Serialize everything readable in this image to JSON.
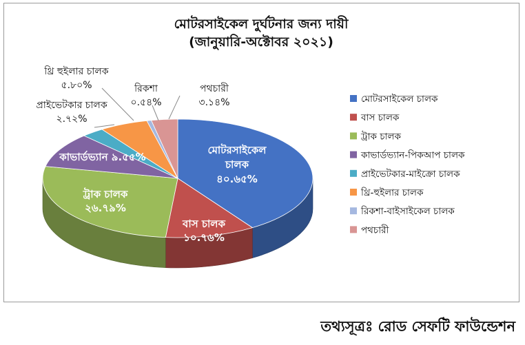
{
  "chart_data": {
    "type": "pie",
    "title": "মোটরসাইকেল দুর্ঘটনার জন্য দায়ী",
    "subtitle": "(জানুয়ারি-অক্টোবর ২০২১)",
    "legend_position": "right",
    "slices": [
      {
        "name": "মোটরসাইকেল চালক",
        "value": 40.65,
        "label": "মোটরসাইকেল চালক",
        "pct": "৪০.৬৫%",
        "color": "#4472C4"
      },
      {
        "name": "বাস চালক",
        "value": 10.76,
        "label": "বাস চালক",
        "pct": "১০.৭৬%",
        "color": "#C0504D"
      },
      {
        "name": "ট্রাক চালক",
        "value": 26.79,
        "label": "ট্রাক চালক",
        "pct": "২৬.৭৯%",
        "color": "#9BBB59"
      },
      {
        "name": "কাভার্ডভ্যান-পিকআপ চালক",
        "value": 9.55,
        "label": "কাভার্ডভ্যান",
        "pct": "৯.৫৫%",
        "color": "#8064A2"
      },
      {
        "name": "প্রাইভেটকার-মাইক্রো চালক",
        "value": 2.72,
        "label": "প্রাইভেটকার চালক",
        "pct": "২.৭২%",
        "color": "#4BACC6"
      },
      {
        "name": "থ্রি-হুইলার চালক",
        "value": 5.8,
        "label": "থ্রি হুইলার চালক",
        "pct": "৫.৮০%",
        "color": "#F79646"
      },
      {
        "name": "রিকশা-বাইসাইকেল চালক",
        "value": 0.54,
        "label": "রিকশা",
        "pct": "০.৫৪%",
        "color": "#A5B8E0"
      },
      {
        "name": "পথচারী",
        "value": 3.14,
        "label": "পথচারী",
        "pct": "৩.১৪%",
        "color": "#D99594"
      }
    ]
  },
  "source": "তথ্যসূত্রঃ রোড সেফটি ফাউন্ডেশন"
}
